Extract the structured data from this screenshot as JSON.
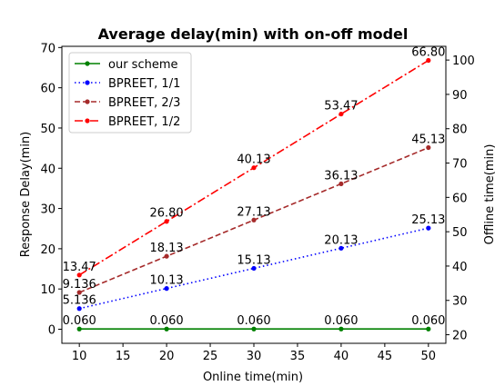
{
  "chart_data": {
    "type": "line",
    "title": "Average delay(min) with on-off model",
    "xlabel": "Online time(min)",
    "ylabel": "Response Delay(min)",
    "y2label": "Offline time(min)",
    "x": [
      10,
      20,
      30,
      40,
      50
    ],
    "xlim": [
      8,
      52
    ],
    "ylim": [
      -3.5,
      70.3
    ],
    "y2lim": [
      17.5,
      104.0
    ],
    "xticks": [
      10,
      15,
      20,
      25,
      30,
      35,
      40,
      45,
      50
    ],
    "yticks": [
      0,
      10,
      20,
      30,
      40,
      50,
      60,
      70
    ],
    "y2ticks": [
      20,
      30,
      40,
      50,
      60,
      70,
      80,
      90,
      100
    ],
    "grid": false,
    "legend_position": "top-left",
    "series": [
      {
        "name": "our scheme",
        "values": [
          0.06,
          0.06,
          0.06,
          0.06,
          0.06
        ],
        "labels": [
          "0.060",
          "0.060",
          "0.060",
          "0.060",
          "0.060"
        ],
        "color": "#008000",
        "dash": "solid"
      },
      {
        "name": "BPREET, 1/1",
        "values": [
          5.136,
          10.13,
          15.13,
          20.13,
          25.13
        ],
        "labels": [
          "5.136",
          "10.13",
          "15.13",
          "20.13",
          "25.13"
        ],
        "color": "#0000ff",
        "dash": "dotted"
      },
      {
        "name": "BPREET, 2/3",
        "values": [
          9.136,
          18.13,
          27.13,
          36.13,
          45.13
        ],
        "labels": [
          "9.136",
          "18.13",
          "27.13",
          "36.13",
          "45.13"
        ],
        "color": "#a52a2a",
        "dash": "dashed"
      },
      {
        "name": "BPREET, 1/2",
        "values": [
          13.47,
          26.8,
          40.13,
          53.47,
          66.8
        ],
        "labels": [
          "13.47",
          "26.80",
          "40.13",
          "53.47",
          "66.80"
        ],
        "color": "#ff0000",
        "dash": "dashdot"
      }
    ]
  }
}
